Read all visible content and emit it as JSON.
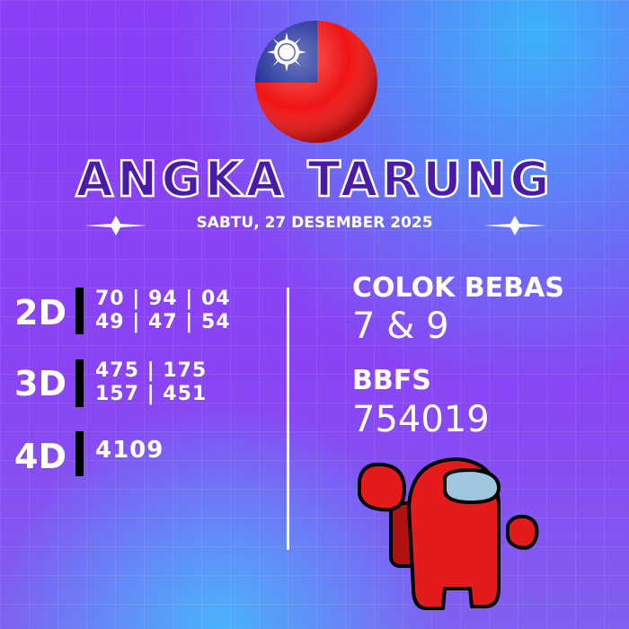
{
  "flag_icon": "taiwan-flag-sphere",
  "title": "ANGKA TARUNG",
  "date": "SABTU, 27 DESEMBER 2025",
  "left": {
    "d2": {
      "label": "2D",
      "lines": [
        "70 | 94 | 04",
        "49 | 47 | 54"
      ]
    },
    "d3": {
      "label": "3D",
      "lines": [
        "475 | 175",
        "157 | 451"
      ]
    },
    "d4": {
      "label": "4D",
      "lines": [
        "4109"
      ]
    }
  },
  "right": {
    "colok_label": "COLOK BEBAS",
    "colok_value": "7 & 9",
    "bbfs_label": "BBFS",
    "bbfs_value": "754019"
  },
  "mascot_icon": "red-crewmate-fists",
  "colors": {
    "accent_bar": "#000000",
    "mascot": "#e01818",
    "bg": "#8a3ff6"
  }
}
